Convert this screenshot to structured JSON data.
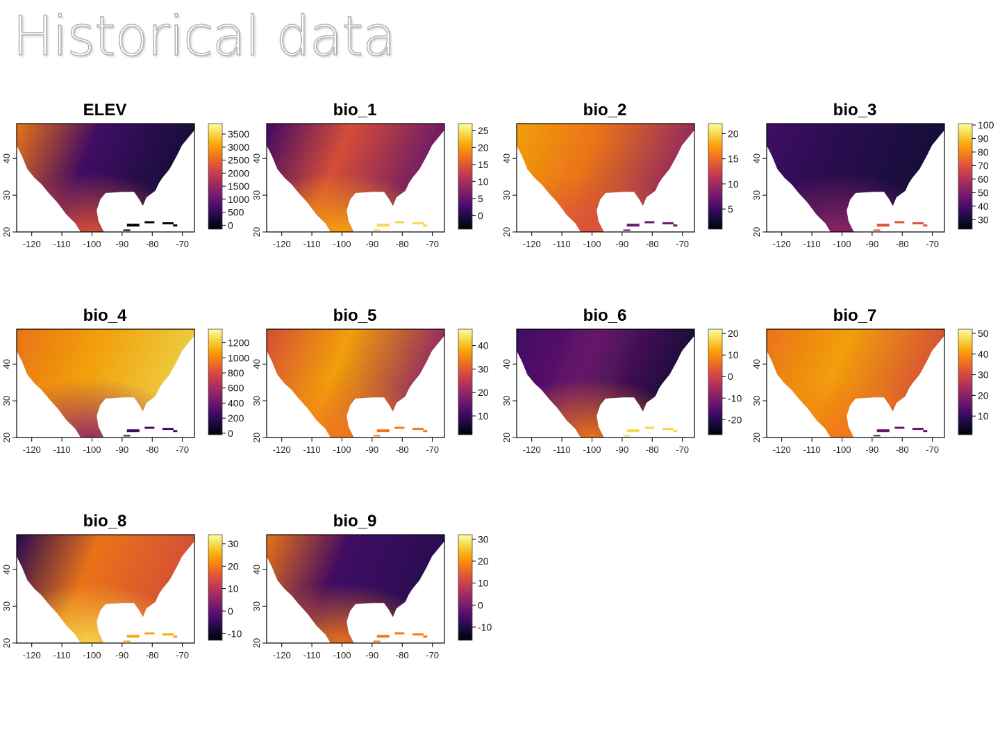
{
  "page": {
    "title": "Historical data"
  },
  "chart_data": [
    {
      "type": "heatmap",
      "title": "ELEV",
      "palette": "inferno",
      "xticks": [
        "-120",
        "-110",
        "-100",
        "-90",
        "-80",
        "-70"
      ],
      "yticks": [
        "20",
        "30",
        "40"
      ],
      "legend_ticks": [
        "0",
        "500",
        "1000",
        "1500",
        "2000",
        "2500",
        "3000",
        "3500"
      ],
      "legend_range": [
        -150,
        3900
      ]
    },
    {
      "type": "heatmap",
      "title": "bio_1",
      "palette": "inferno",
      "xticks": [
        "-120",
        "-110",
        "-100",
        "-90",
        "-80",
        "-70"
      ],
      "yticks": [
        "20",
        "30",
        "40"
      ],
      "legend_ticks": [
        "0",
        "5",
        "10",
        "15",
        "20",
        "25"
      ],
      "legend_range": [
        -4,
        27
      ]
    },
    {
      "type": "heatmap",
      "title": "bio_2",
      "palette": "inferno",
      "xticks": [
        "-120",
        "-110",
        "-100",
        "-90",
        "-80",
        "-70"
      ],
      "yticks": [
        "20",
        "30",
        "40"
      ],
      "legend_ticks": [
        "5",
        "10",
        "15",
        "20"
      ],
      "legend_range": [
        1,
        22
      ]
    },
    {
      "type": "heatmap",
      "title": "bio_3",
      "palette": "inferno",
      "xticks": [
        "-120",
        "-110",
        "-100",
        "-90",
        "-80",
        "-70"
      ],
      "yticks": [
        "20",
        "30",
        "40"
      ],
      "legend_ticks": [
        "30",
        "40",
        "50",
        "60",
        "70",
        "80",
        "90",
        "100"
      ],
      "legend_range": [
        23,
        101
      ]
    },
    {
      "type": "heatmap",
      "title": "bio_4",
      "palette": "inferno",
      "xticks": [
        "-120",
        "-110",
        "-100",
        "-90",
        "-80",
        "-70"
      ],
      "yticks": [
        "20",
        "30",
        "40"
      ],
      "legend_ticks": [
        "0",
        "200",
        "400",
        "600",
        "800",
        "1000",
        "1200"
      ],
      "legend_range": [
        -20,
        1380
      ]
    },
    {
      "type": "heatmap",
      "title": "bio_5",
      "palette": "inferno",
      "xticks": [
        "-120",
        "-110",
        "-100",
        "-90",
        "-80",
        "-70"
      ],
      "yticks": [
        "20",
        "30",
        "40"
      ],
      "legend_ticks": [
        "10",
        "20",
        "30",
        "40"
      ],
      "legend_range": [
        2,
        47
      ]
    },
    {
      "type": "heatmap",
      "title": "bio_6",
      "palette": "inferno",
      "xticks": [
        "-120",
        "-110",
        "-100",
        "-90",
        "-80",
        "-70"
      ],
      "yticks": [
        "20",
        "30",
        "40"
      ],
      "legend_ticks": [
        "-20",
        "-10",
        "0",
        "10",
        "20"
      ],
      "legend_range": [
        -27,
        22
      ]
    },
    {
      "type": "heatmap",
      "title": "bio_7",
      "palette": "inferno",
      "xticks": [
        "-120",
        "-110",
        "-100",
        "-90",
        "-80",
        "-70"
      ],
      "yticks": [
        "20",
        "30",
        "40"
      ],
      "legend_ticks": [
        "10",
        "20",
        "30",
        "40",
        "50"
      ],
      "legend_range": [
        1,
        52
      ]
    },
    {
      "type": "heatmap",
      "title": "bio_8",
      "palette": "inferno",
      "xticks": [
        "-120",
        "-110",
        "-100",
        "-90",
        "-80",
        "-70"
      ],
      "yticks": [
        "20",
        "30",
        "40"
      ],
      "legend_ticks": [
        "-10",
        "0",
        "10",
        "20",
        "30"
      ],
      "legend_range": [
        -13,
        34
      ]
    },
    {
      "type": "heatmap",
      "title": "bio_9",
      "palette": "inferno",
      "xticks": [
        "-120",
        "-110",
        "-100",
        "-90",
        "-80",
        "-70"
      ],
      "yticks": [
        "20",
        "30",
        "40"
      ],
      "legend_ticks": [
        "-10",
        "0",
        "10",
        "20",
        "30"
      ],
      "legend_range": [
        -16,
        32
      ]
    }
  ]
}
